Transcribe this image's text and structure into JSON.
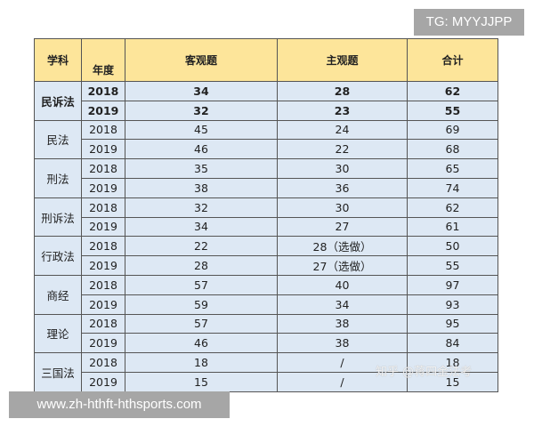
{
  "header": {
    "subject": "学科",
    "year": "年度",
    "objective": "客观题",
    "subjective": "主观题",
    "total": "合计"
  },
  "groups": [
    {
      "subject": "民诉法",
      "bold": true,
      "rows": [
        [
          "2018",
          "34",
          "28",
          "62"
        ],
        [
          "2019",
          "32",
          "23",
          "55"
        ]
      ]
    },
    {
      "subject": "民法",
      "rows": [
        [
          "2018",
          "45",
          "24",
          "69"
        ],
        [
          "2019",
          "46",
          "22",
          "68"
        ]
      ]
    },
    {
      "subject": "刑法",
      "rows": [
        [
          "2018",
          "35",
          "30",
          "65"
        ],
        [
          "2019",
          "38",
          "36",
          "74"
        ]
      ]
    },
    {
      "subject": "刑诉法",
      "rows": [
        [
          "2018",
          "32",
          "30",
          "62"
        ],
        [
          "2019",
          "34",
          "27",
          "61"
        ]
      ]
    },
    {
      "subject": "行政法",
      "rows": [
        [
          "2018",
          "22",
          "28（选做）",
          "50"
        ],
        [
          "2019",
          "28",
          "27（选做）",
          "55"
        ]
      ]
    },
    {
      "subject": "商经",
      "rows": [
        [
          "2018",
          "57",
          "40",
          "97"
        ],
        [
          "2019",
          "59",
          "34",
          "93"
        ]
      ]
    },
    {
      "subject": "理论",
      "rows": [
        [
          "2018",
          "57",
          "38",
          "95"
        ],
        [
          "2019",
          "46",
          "38",
          "84"
        ]
      ]
    },
    {
      "subject": "三国法",
      "rows": [
        [
          "2018",
          "18",
          "/",
          "18"
        ],
        [
          "2019",
          "15",
          "/",
          "15"
        ]
      ]
    }
  ],
  "overlays": {
    "tg": "TG: MYYJJPP",
    "url": "www.zh-hthft-hthsports.com",
    "watermark": "知乎 @蒋四金法考"
  }
}
